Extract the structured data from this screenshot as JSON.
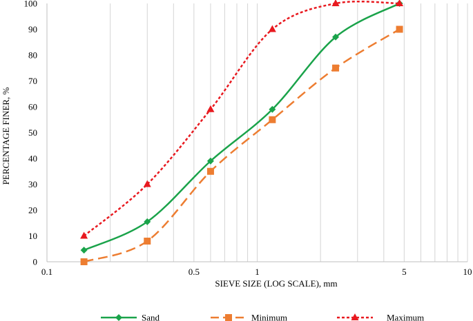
{
  "chart_data": {
    "type": "line",
    "title": "",
    "xlabel": "SIEVE SIZE (LOG SCALE), mm",
    "ylabel": "PERCENTAGE FINER, %",
    "xscale": "log",
    "xlim": [
      0.1,
      10
    ],
    "ylim": [
      0,
      100
    ],
    "xticks": [
      {
        "value": 0.1,
        "label": "0.1"
      },
      {
        "value": 0.5,
        "label": "0.5"
      },
      {
        "value": 1,
        "label": "1"
      },
      {
        "value": 5,
        "label": "5"
      },
      {
        "value": 10,
        "label": "10"
      }
    ],
    "yticks": [
      {
        "value": 0,
        "label": "0"
      },
      {
        "value": 10,
        "label": "10"
      },
      {
        "value": 20,
        "label": "20"
      },
      {
        "value": 30,
        "label": "30"
      },
      {
        "value": 40,
        "label": "40"
      },
      {
        "value": 50,
        "label": "50"
      },
      {
        "value": 60,
        "label": "60"
      },
      {
        "value": 70,
        "label": "70"
      },
      {
        "value": 80,
        "label": "80"
      },
      {
        "value": 90,
        "label": "90"
      },
      {
        "value": 100,
        "label": "100"
      }
    ],
    "grid": "vertical log gridlines",
    "legend": "bottom",
    "series": [
      {
        "name": "Sand",
        "color": "#1aa34a",
        "line": "solid",
        "marker": "diamond",
        "x": [
          0.15,
          0.3,
          0.6,
          1.18,
          2.36,
          4.75
        ],
        "y": [
          4.5,
          15.5,
          39,
          59,
          87,
          100
        ]
      },
      {
        "name": "Minimum",
        "color": "#ed7d31",
        "line": "dashed",
        "marker": "square",
        "x": [
          0.15,
          0.3,
          0.6,
          1.18,
          2.36,
          4.75
        ],
        "y": [
          0,
          8,
          35,
          55,
          75,
          90
        ]
      },
      {
        "name": "Maximum",
        "color": "#e8191f",
        "line": "dotted",
        "marker": "triangle",
        "x": [
          0.15,
          0.3,
          0.6,
          1.18,
          2.36,
          4.75
        ],
        "y": [
          10,
          30,
          59,
          90,
          100,
          100
        ]
      }
    ]
  }
}
